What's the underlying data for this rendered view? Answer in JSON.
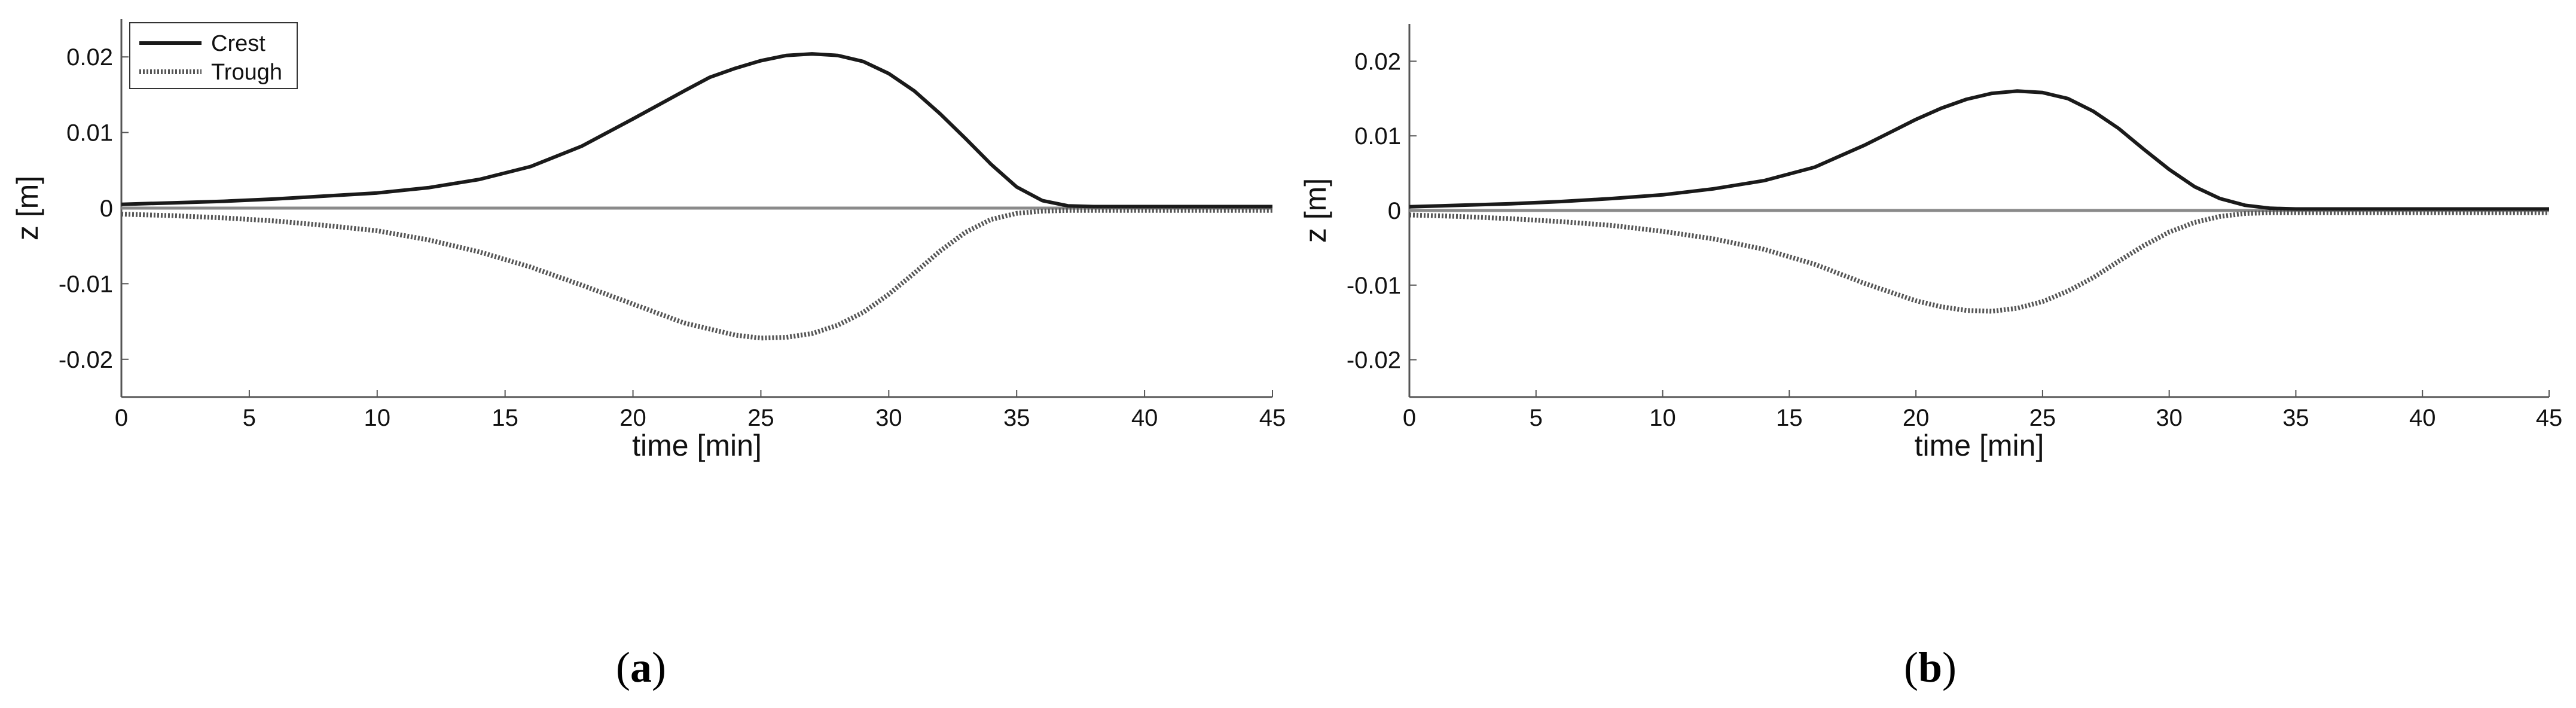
{
  "chart_data": [
    {
      "type": "line",
      "caption": "a",
      "xlabel": "time [min]",
      "ylabel": "z [m]",
      "xlim": [
        0,
        45
      ],
      "ylim": [
        -0.025,
        0.025
      ],
      "xticks": [
        0,
        5,
        10,
        15,
        20,
        25,
        30,
        35,
        40,
        45
      ],
      "xtick_labels": [
        "0",
        "5",
        "10",
        "15",
        "20",
        "25",
        "30",
        "35",
        "40",
        "45"
      ],
      "yticks": [
        0.02,
        0.01,
        0,
        -0.01,
        -0.02
      ],
      "ytick_labels": [
        "0.02",
        "0.01",
        "0",
        "-0.01",
        "-0.02"
      ],
      "grid": false,
      "legend": "top-left",
      "series": [
        {
          "name": "Crest",
          "style": "solid",
          "x": [
            0,
            2,
            4,
            6,
            8,
            10,
            12,
            14,
            16,
            18,
            20,
            22,
            23,
            24,
            25,
            26,
            27,
            28,
            29,
            30,
            31,
            32,
            33,
            34,
            35,
            36,
            37,
            38,
            40,
            42,
            45
          ],
          "y": [
            0.0005,
            0.0007,
            0.0009,
            0.0012,
            0.0016,
            0.002,
            0.0027,
            0.0038,
            0.0055,
            0.0082,
            0.0118,
            0.0155,
            0.0173,
            0.0185,
            0.0195,
            0.0202,
            0.0204,
            0.0202,
            0.0194,
            0.0178,
            0.0155,
            0.0125,
            0.0092,
            0.0058,
            0.0028,
            0.001,
            0.0003,
            0.0002,
            0.0002,
            0.0002,
            0.0002
          ]
        },
        {
          "name": "Trough",
          "style": "dotted",
          "x": [
            0,
            2,
            4,
            6,
            8,
            10,
            12,
            14,
            16,
            18,
            20,
            22,
            24,
            25,
            26,
            27,
            28,
            29,
            30,
            31,
            32,
            33,
            34,
            35,
            36,
            37,
            38,
            40,
            42,
            45
          ],
          "y": [
            -0.0008,
            -0.001,
            -0.0013,
            -0.0017,
            -0.0023,
            -0.003,
            -0.0042,
            -0.0058,
            -0.0078,
            -0.0102,
            -0.0127,
            -0.0152,
            -0.0168,
            -0.0172,
            -0.0171,
            -0.0166,
            -0.0155,
            -0.0138,
            -0.0114,
            -0.0086,
            -0.0057,
            -0.0032,
            -0.0015,
            -0.0007,
            -0.0004,
            -0.0003,
            -0.0003,
            -0.0003,
            -0.0003,
            -0.0003
          ]
        }
      ]
    },
    {
      "type": "line",
      "caption": "b",
      "xlabel": "time [min]",
      "ylabel": "z [m]",
      "xlim": [
        0,
        45
      ],
      "ylim": [
        -0.025,
        0.025
      ],
      "xticks": [
        0,
        5,
        10,
        15,
        20,
        25,
        30,
        35,
        40,
        45
      ],
      "xtick_labels": [
        "0",
        "5",
        "10",
        "15",
        "20",
        "25",
        "30",
        "35",
        "40",
        "45"
      ],
      "yticks": [
        0.02,
        0.01,
        0,
        -0.01,
        -0.02
      ],
      "ytick_labels": [
        "0.02",
        "0.01",
        "0",
        "-0.01",
        "-0.02"
      ],
      "grid": false,
      "series": [
        {
          "style": "solid",
          "x": [
            0,
            2,
            4,
            6,
            8,
            10,
            12,
            14,
            16,
            18,
            19,
            20,
            21,
            22,
            23,
            24,
            25,
            26,
            27,
            28,
            29,
            30,
            31,
            32,
            33,
            34,
            35,
            37,
            40,
            42,
            45
          ],
          "y": [
            0.0005,
            0.0007,
            0.0009,
            0.0012,
            0.0016,
            0.0021,
            0.0029,
            0.004,
            0.0058,
            0.0088,
            0.0105,
            0.0122,
            0.0137,
            0.0149,
            0.0157,
            0.016,
            0.0158,
            0.015,
            0.0133,
            0.011,
            0.0082,
            0.0055,
            0.0032,
            0.0016,
            0.0007,
            0.0003,
            0.0002,
            0.0002,
            0.0002,
            0.0002,
            0.0002
          ]
        },
        {
          "style": "dotted",
          "x": [
            0,
            2,
            4,
            6,
            8,
            10,
            12,
            14,
            16,
            18,
            20,
            21,
            22,
            23,
            24,
            25,
            26,
            27,
            28,
            29,
            30,
            31,
            32,
            33,
            34,
            35,
            37,
            40,
            42,
            45
          ],
          "y": [
            -0.0006,
            -0.0008,
            -0.0011,
            -0.0015,
            -0.002,
            -0.0028,
            -0.0038,
            -0.0052,
            -0.0072,
            -0.0098,
            -0.0121,
            -0.0129,
            -0.0134,
            -0.0135,
            -0.0131,
            -0.0122,
            -0.0108,
            -0.009,
            -0.0068,
            -0.0047,
            -0.0029,
            -0.0016,
            -0.0008,
            -0.0004,
            -0.0003,
            -0.0003,
            -0.0003,
            -0.0003,
            -0.0003,
            -0.0003
          ]
        }
      ]
    }
  ]
}
